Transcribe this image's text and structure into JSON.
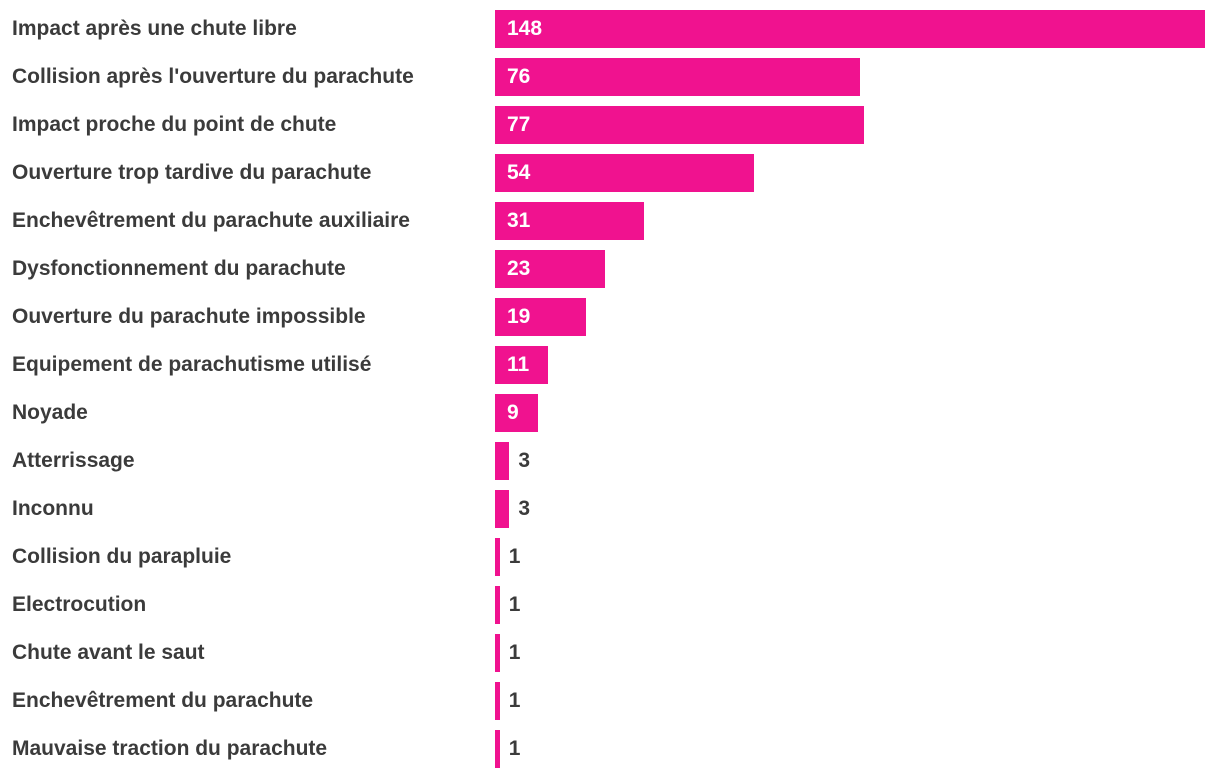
{
  "chart_data": {
    "type": "bar",
    "orientation": "horizontal",
    "title": "",
    "xlabel": "",
    "ylabel": "",
    "grid": false,
    "legend": false,
    "xlim": [
      0,
      148
    ],
    "categories": [
      "Impact après une chute libre",
      "Collision après l'ouverture du parachute",
      "Impact proche du point de chute",
      "Ouverture trop tardive du parachute",
      "Enchevêtrement du parachute auxiliaire",
      "Dysfonctionnement du parachute",
      "Ouverture du parachute impossible",
      "Equipement de parachutisme utilisé",
      "Noyade",
      "Atterrissage",
      "Inconnu",
      "Collision du parapluie",
      "Electrocution",
      "Chute avant le saut",
      "Enchevêtrement du parachute",
      "Mauvaise traction du parachute"
    ],
    "values": [
      148,
      76,
      77,
      54,
      31,
      23,
      19,
      11,
      9,
      3,
      3,
      1,
      1,
      1,
      1,
      1
    ],
    "value_labels": [
      "148",
      "76",
      "77",
      "54",
      "31",
      "23",
      "19",
      "11",
      "9",
      "3",
      "3",
      "1",
      "1",
      "1",
      "1",
      "1"
    ],
    "colors": {
      "bar": "#F0128F",
      "category_label": "#3B3B3B",
      "value_label_inside": "#FFFFFF",
      "value_label_outside": "#3B3B3B",
      "background": "#FFFFFF"
    }
  }
}
